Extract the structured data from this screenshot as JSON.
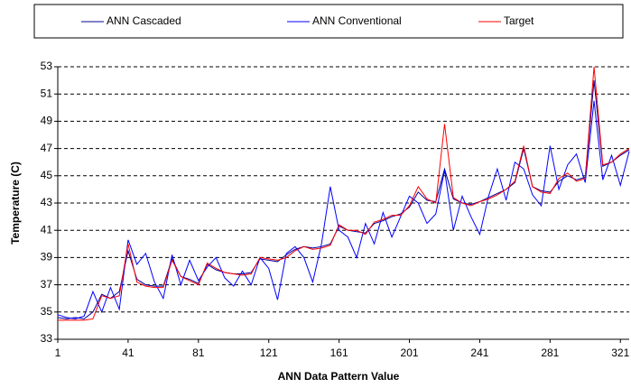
{
  "chart_data": {
    "type": "line",
    "x_label": "ANN Data Pattern Value",
    "y_label": "Temperature (C)",
    "x": [
      1,
      6,
      11,
      16,
      21,
      26,
      31,
      36,
      41,
      46,
      51,
      56,
      61,
      66,
      71,
      76,
      81,
      86,
      91,
      96,
      101,
      106,
      111,
      116,
      121,
      126,
      131,
      136,
      141,
      146,
      151,
      156,
      161,
      166,
      171,
      176,
      181,
      186,
      191,
      196,
      201,
      206,
      211,
      216,
      221,
      226,
      231,
      236,
      241,
      246,
      251,
      256,
      261,
      266,
      271,
      276,
      281,
      286,
      291,
      296,
      301,
      306,
      311,
      316,
      321,
      326
    ],
    "series": [
      {
        "name": "ANN Cascaded",
        "color": "#000099",
        "values": [
          34.6,
          34.5,
          34.6,
          34.5,
          35.0,
          36.3,
          36.0,
          36.5,
          39.5,
          37.4,
          37.0,
          36.9,
          36.9,
          38.9,
          37.6,
          37.4,
          37.1,
          38.5,
          38.1,
          37.9,
          37.8,
          37.8,
          37.9,
          38.9,
          38.8,
          38.7,
          39.2,
          39.6,
          39.8,
          39.7,
          39.8,
          40.0,
          41.3,
          41.0,
          40.9,
          40.8,
          41.5,
          41.7,
          42.0,
          42.2,
          42.7,
          43.8,
          43.2,
          43.1,
          45.5,
          43.3,
          43.0,
          42.9,
          43.1,
          43.4,
          43.7,
          44.0,
          44.5,
          47.0,
          44.2,
          43.9,
          43.8,
          44.6,
          45.0,
          44.7,
          44.9,
          52.0,
          45.7,
          46.0,
          46.5,
          46.9
        ]
      },
      {
        "name": "ANN Conventional",
        "color": "#0000ff",
        "values": [
          34.8,
          34.6,
          34.5,
          34.7,
          36.5,
          35.0,
          36.8,
          35.2,
          40.3,
          38.5,
          39.3,
          37.2,
          36.0,
          39.2,
          37.0,
          38.8,
          37.3,
          38.3,
          39.0,
          37.5,
          36.9,
          38.0,
          37.0,
          39.0,
          38.2,
          35.9,
          39.3,
          39.8,
          39.0,
          37.2,
          40.0,
          44.2,
          41.0,
          40.5,
          39.0,
          41.5,
          40.0,
          42.3,
          40.5,
          42.0,
          43.5,
          43.0,
          41.5,
          42.2,
          45.4,
          41.0,
          43.5,
          42.0,
          40.7,
          43.5,
          45.5,
          43.2,
          46.0,
          45.5,
          43.6,
          42.8,
          47.2,
          44.0,
          45.8,
          46.6,
          44.5,
          50.5,
          44.7,
          46.5,
          44.3,
          46.8
        ]
      },
      {
        "name": "Target",
        "color": "#ff0000",
        "values": [
          34.4,
          34.4,
          34.4,
          34.4,
          34.5,
          36.2,
          36.0,
          36.2,
          40.0,
          37.2,
          36.9,
          36.8,
          36.8,
          38.8,
          37.6,
          37.3,
          37.0,
          38.6,
          38.2,
          37.9,
          37.8,
          37.7,
          37.8,
          39.0,
          38.9,
          38.8,
          39.0,
          39.5,
          39.8,
          39.6,
          39.7,
          39.9,
          41.4,
          41.0,
          41.0,
          40.7,
          41.6,
          41.8,
          42.1,
          42.1,
          42.8,
          44.2,
          43.3,
          43.0,
          48.8,
          43.4,
          43.0,
          42.8,
          43.1,
          43.3,
          43.6,
          44.0,
          44.6,
          47.2,
          44.2,
          43.8,
          43.7,
          44.8,
          45.2,
          44.6,
          44.8,
          53.0,
          45.8,
          46.0,
          46.6,
          47.0
        ]
      }
    ],
    "xlim": [
      1,
      326
    ],
    "xticks": [
      1,
      41,
      81,
      121,
      161,
      201,
      241,
      281,
      321
    ],
    "ylim": [
      33,
      53
    ],
    "yticks": [
      33,
      35,
      37,
      39,
      41,
      43,
      45,
      47,
      49,
      51,
      53
    ],
    "grid": true,
    "legend": "top"
  }
}
